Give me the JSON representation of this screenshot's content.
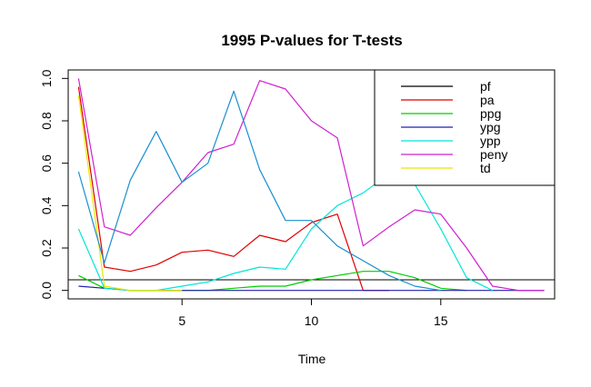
{
  "chart_data": {
    "type": "line",
    "title": "1995  P-values for T-tests",
    "xlabel": "Time",
    "ylabel": "",
    "xlim": [
      0.6,
      19.4
    ],
    "ylim": [
      -0.04,
      1.04
    ],
    "xticks": [
      5,
      10,
      15
    ],
    "yticks": [
      0.0,
      0.2,
      0.4,
      0.6,
      0.8,
      1.0
    ],
    "ytick_labels": [
      "0.0",
      "0.2",
      "0.4",
      "0.6",
      "0.8",
      "1.0"
    ],
    "grid": false,
    "legend_position": "top-right",
    "reference_line": {
      "y": 0.05,
      "color": "#000000"
    },
    "series": [
      {
        "name": "pf",
        "color": "#000000",
        "x": [
          1,
          2,
          3,
          4,
          5,
          6,
          7,
          8,
          9,
          10,
          11,
          12,
          13,
          14,
          15,
          16,
          17,
          18,
          19
        ],
        "y": [
          null,
          null,
          null,
          null,
          null,
          null,
          null,
          null,
          null,
          null,
          null,
          null,
          null,
          null,
          null,
          null,
          null,
          null,
          null
        ]
      },
      {
        "name": "pa",
        "color": "#DF0000",
        "x": [
          1,
          2,
          3,
          4,
          5,
          6,
          7,
          8,
          9,
          10,
          11,
          12,
          13
        ],
        "y": [
          0.96,
          0.11,
          0.09,
          0.12,
          0.18,
          0.19,
          0.16,
          0.26,
          0.23,
          0.32,
          0.36,
          0.0,
          0.0
        ]
      },
      {
        "name": "ppg",
        "color": "#00CD00",
        "x": [
          1,
          2,
          3,
          4,
          5,
          6,
          7,
          8,
          9,
          10,
          11,
          12,
          13,
          14,
          15,
          16
        ],
        "y": [
          0.07,
          0.01,
          0.0,
          0.0,
          0.0,
          0.0,
          0.01,
          0.02,
          0.02,
          0.05,
          0.07,
          0.09,
          0.09,
          0.06,
          0.01,
          0.0
        ]
      },
      {
        "name": "ypg",
        "color": "#2020B0",
        "x": [
          1,
          2,
          3,
          4,
          5,
          6,
          7,
          8,
          9,
          10,
          11,
          12,
          13,
          14,
          15,
          16,
          17,
          18,
          19
        ],
        "y": [
          0.02,
          0.01,
          0.0,
          0.0,
          0.0,
          0.0,
          0.0,
          0.0,
          0.0,
          0.0,
          0.0,
          0.0,
          0.0,
          0.0,
          0.0,
          0.0,
          0.0,
          0.0,
          0.0
        ]
      },
      {
        "name": "ypp",
        "color": "#00E5D5",
        "x": [
          1,
          2,
          3,
          4,
          5,
          6,
          7,
          8,
          9,
          10,
          11,
          12,
          13,
          14,
          15,
          16,
          17
        ],
        "y": [
          0.29,
          0.01,
          0.0,
          0.0,
          0.02,
          0.04,
          0.08,
          0.11,
          0.1,
          0.29,
          0.4,
          0.46,
          0.55,
          0.5,
          0.29,
          0.06,
          0.0
        ]
      },
      {
        "name": "peny",
        "color": "#D020D0",
        "x": [
          1,
          2,
          3,
          4,
          5,
          6,
          7,
          8,
          9,
          10,
          11,
          12,
          13,
          14,
          15,
          16,
          17,
          18,
          19
        ],
        "y": [
          1.0,
          0.3,
          0.26,
          0.39,
          0.51,
          0.65,
          0.69,
          0.99,
          0.95,
          0.8,
          0.72,
          0.21,
          0.3,
          0.38,
          0.36,
          0.2,
          0.02,
          0.0,
          0.0
        ]
      },
      {
        "name": "td",
        "color": "#E8E800",
        "x": [
          1,
          2,
          3,
          4,
          5
        ],
        "y": [
          0.92,
          0.02,
          0.0,
          0.0,
          0.0
        ]
      },
      {
        "name": "",
        "color": "#1A8FD0",
        "x": [
          1,
          2,
          3,
          4,
          5,
          6,
          7,
          8,
          9,
          10,
          11,
          12,
          13,
          14,
          15
        ],
        "y": [
          0.56,
          0.13,
          0.52,
          0.75,
          0.51,
          0.6,
          0.94,
          0.57,
          0.33,
          0.33,
          0.21,
          0.14,
          0.07,
          0.02,
          0.0
        ]
      }
    ]
  }
}
